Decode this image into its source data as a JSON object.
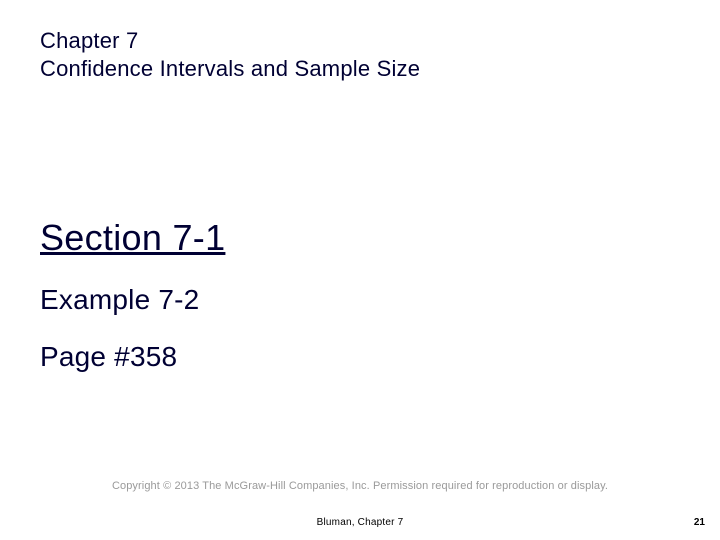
{
  "header": {
    "chapter_line": "Chapter 7",
    "chapter_title": "Confidence Intervals and Sample Size"
  },
  "content": {
    "section": "Section 7-1",
    "example": "Example 7-2",
    "page": "Page #358"
  },
  "footer": {
    "copyright": "Copyright © 2013 The McGraw-Hill Companies, Inc. Permission required for reproduction or display.",
    "reference": "Bluman, Chapter 7",
    "slide_number": "21"
  },
  "colors": {
    "text_primary": "#000033",
    "text_footer": "#000000",
    "text_copyright": "#9a9a9a",
    "background": "#ffffff"
  },
  "fonts": {
    "chapter_size": 22,
    "section_size": 36,
    "example_size": 28,
    "page_size": 28,
    "copyright_size": 11,
    "footer_size": 10
  }
}
